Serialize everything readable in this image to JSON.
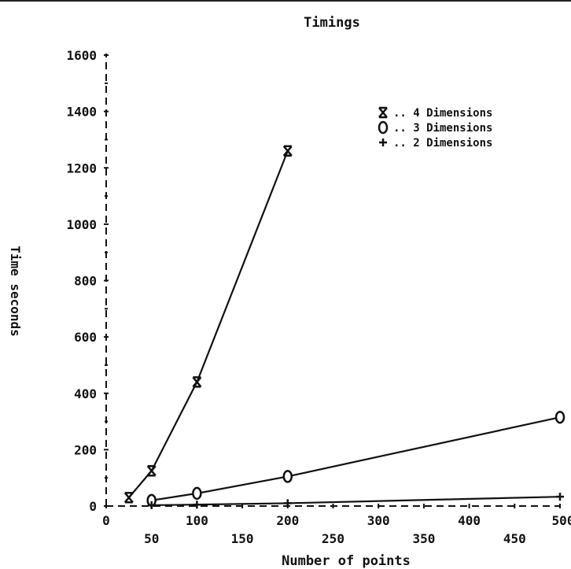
{
  "chart_data": {
    "type": "line",
    "title": "Timings",
    "xlabel": "Number of points",
    "ylabel": "Time seconds",
    "xlim": [
      0,
      500
    ],
    "ylim": [
      0,
      1600
    ],
    "xticks_top_row": [
      "0",
      "100",
      "200",
      "300",
      "400",
      "500"
    ],
    "xticks_bottom_row": [
      "50",
      "150",
      "250",
      "350",
      "450"
    ],
    "yticks": [
      "0",
      "200",
      "400",
      "600",
      "800",
      "1000",
      "1200",
      "1400",
      "1600"
    ],
    "legend_position": "top-right",
    "series": [
      {
        "name": ".. 4 Dimensions",
        "marker": "X",
        "x": [
          25,
          50,
          100,
          200
        ],
        "values": [
          30,
          125,
          440,
          1260
        ]
      },
      {
        "name": ".. 3 Dimensions",
        "marker": "O",
        "x": [
          50,
          100,
          200,
          500
        ],
        "values": [
          20,
          45,
          105,
          315
        ]
      },
      {
        "name": ".. 2 Dimensions",
        "marker": "+",
        "x": [
          50,
          100,
          200,
          500
        ],
        "values": [
          3,
          5,
          10,
          33
        ]
      }
    ]
  }
}
